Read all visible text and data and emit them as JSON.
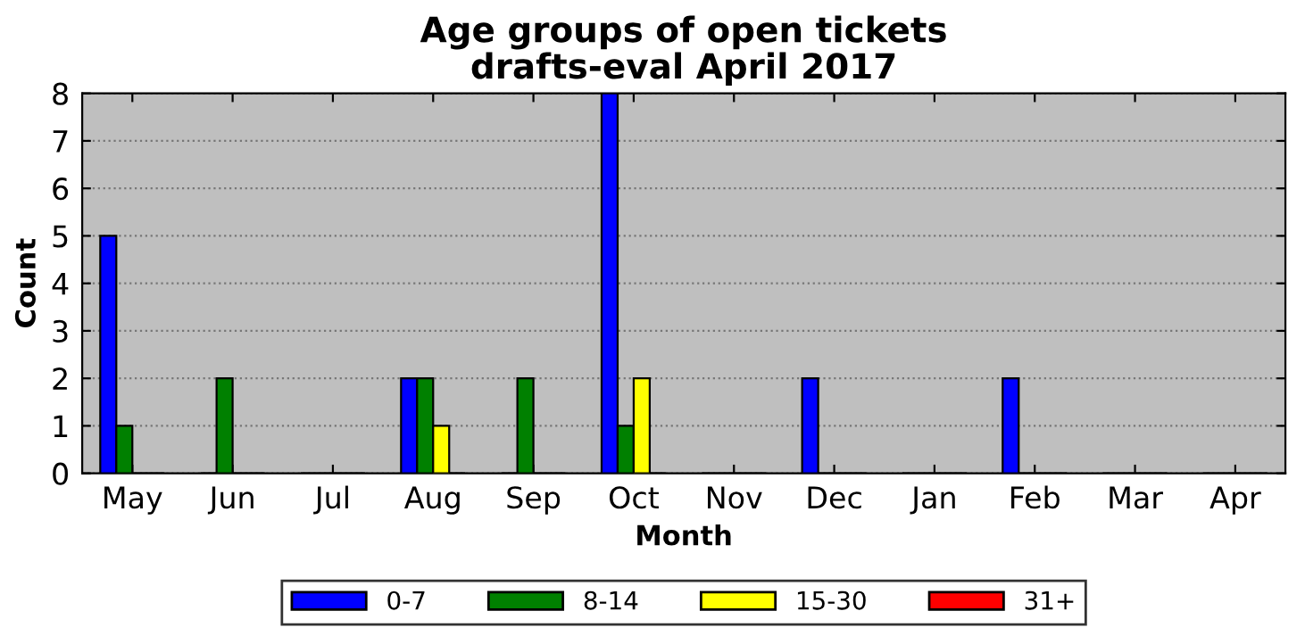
{
  "chart_data": {
    "type": "bar",
    "title": "Age groups of open tickets",
    "subtitle": "drafts-eval April 2017",
    "xlabel": "Month",
    "ylabel": "Count",
    "categories": [
      "May",
      "Jun",
      "Jul",
      "Aug",
      "Sep",
      "Oct",
      "Nov",
      "Dec",
      "Jan",
      "Feb",
      "Mar",
      "Apr"
    ],
    "series": [
      {
        "name": "0-7",
        "color": "#0000ff",
        "values": [
          5,
          0,
          0,
          2,
          0,
          8,
          0,
          2,
          0,
          2,
          0,
          0
        ]
      },
      {
        "name": "8-14",
        "color": "#008000",
        "values": [
          1,
          2,
          0,
          2,
          2,
          1,
          0,
          0,
          0,
          0,
          0,
          0
        ]
      },
      {
        "name": "15-30",
        "color": "#ffff00",
        "values": [
          0,
          0,
          0,
          1,
          0,
          2,
          0,
          0,
          0,
          0,
          0,
          0
        ]
      },
      {
        "name": "31+",
        "color": "#ff0000",
        "values": [
          0,
          0,
          0,
          0,
          0,
          0,
          0,
          0,
          0,
          0,
          0,
          0
        ]
      }
    ],
    "ylim": [
      0,
      8
    ],
    "yticks": [
      0,
      1,
      2,
      3,
      4,
      5,
      6,
      7,
      8
    ],
    "grid": "y",
    "legend": "bottom"
  }
}
